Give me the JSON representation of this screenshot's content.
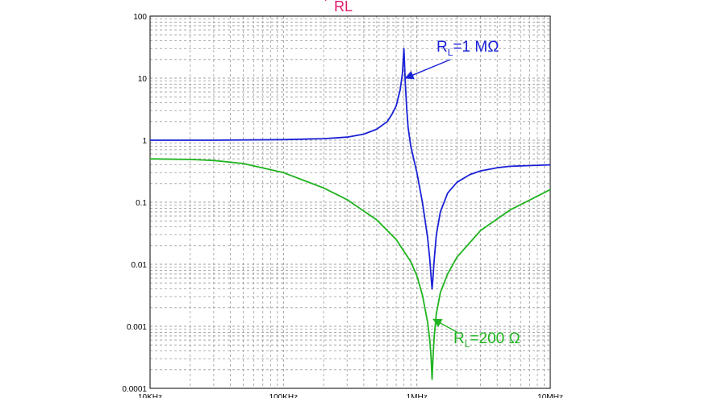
{
  "chart_data": {
    "type": "line",
    "title": "RL",
    "title_prefix": "'",
    "x_scale": "log",
    "y_scale": "log",
    "xlim": [
      10000,
      10000000
    ],
    "ylim": [
      0.0001,
      100
    ],
    "x_tick_labels": [
      "10KHz",
      "100KHz",
      "1MHz",
      "10MHz"
    ],
    "x_tick_values": [
      10000,
      100000,
      1000000,
      10000000
    ],
    "y_tick_labels": [
      "100",
      "10",
      "1",
      "0.1",
      "0.01",
      "0.001",
      "0.0001"
    ],
    "y_tick_values": [
      100,
      10,
      1,
      0.1,
      0.01,
      0.001,
      0.0001
    ],
    "grid": true,
    "series": [
      {
        "name": "RL=1 MΩ",
        "color": "#1a22d6",
        "x": [
          10000,
          30000,
          100000,
          200000,
          300000,
          400000,
          500000,
          600000,
          650000,
          700000,
          750000,
          780000,
          800000,
          820000,
          840000,
          860000,
          900000,
          1000000,
          1100000,
          1200000,
          1250000,
          1280000,
          1300000,
          1320000,
          1350000,
          1400000,
          1500000,
          1700000,
          2000000,
          2500000,
          3000000,
          4000000,
          5000000,
          7000000,
          10000000
        ],
        "y": [
          1.0,
          1.0,
          1.02,
          1.06,
          1.12,
          1.25,
          1.5,
          2.0,
          2.6,
          3.6,
          6.5,
          12,
          30,
          8,
          3.2,
          1.6,
          0.8,
          0.3,
          0.1,
          0.028,
          0.012,
          0.006,
          0.004,
          0.006,
          0.012,
          0.03,
          0.07,
          0.14,
          0.21,
          0.28,
          0.32,
          0.36,
          0.38,
          0.39,
          0.4
        ]
      },
      {
        "name": "RL=200 Ω",
        "color": "#1fb31f",
        "x": [
          10000,
          20000,
          30000,
          50000,
          100000,
          200000,
          300000,
          500000,
          700000,
          900000,
          1000000,
          1100000,
          1200000,
          1250000,
          1280000,
          1300000,
          1320000,
          1350000,
          1400000,
          1500000,
          1700000,
          2000000,
          3000000,
          5000000,
          10000000
        ],
        "y": [
          0.5,
          0.49,
          0.47,
          0.42,
          0.3,
          0.17,
          0.11,
          0.052,
          0.025,
          0.011,
          0.0065,
          0.0032,
          0.0012,
          0.0006,
          0.0003,
          0.00014,
          0.0003,
          0.0007,
          0.0016,
          0.0035,
          0.007,
          0.013,
          0.035,
          0.075,
          0.16
        ]
      }
    ],
    "annotations": [
      {
        "main": "R",
        "sub": "L",
        "rest": "=1 MΩ",
        "color": "#1a22d6",
        "target_x": 820000,
        "target_y": 10
      },
      {
        "main": "R",
        "sub": "L",
        "rest": "=200 Ω",
        "color": "#1fb31f",
        "target_x": 1330000,
        "target_y": 0.0013
      }
    ]
  }
}
